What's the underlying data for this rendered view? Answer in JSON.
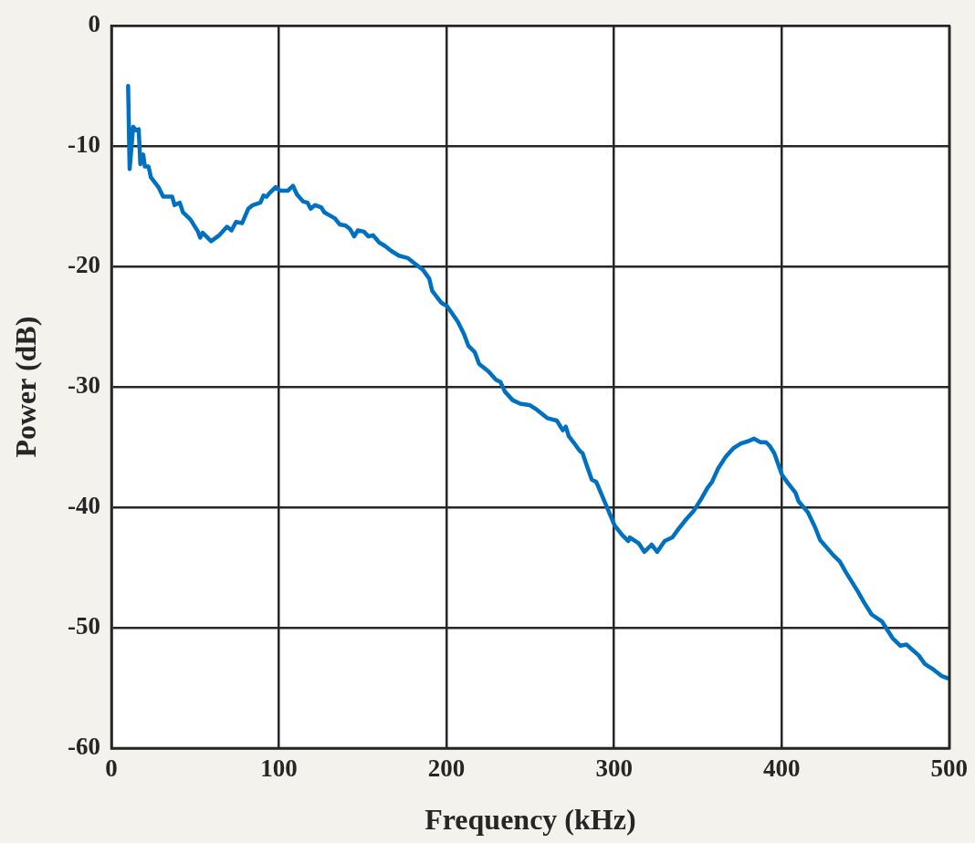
{
  "chart_data": {
    "type": "line",
    "xlabel": "Frequency (kHz)",
    "ylabel": "Power (dB)",
    "xlim": [
      0,
      500
    ],
    "ylim": [
      -60,
      0
    ],
    "xticks": [
      0,
      100,
      200,
      300,
      400,
      500
    ],
    "yticks": [
      -60,
      -50,
      -40,
      -30,
      -20,
      -10,
      0
    ],
    "grid": true,
    "marker": "none",
    "line_style": "solid",
    "series": [
      {
        "color": "#0070c0",
        "x": [
          10,
          10.9,
          13,
          14.9,
          16.3,
          17.3,
          19,
          20,
          22.2,
          23.6,
          28.1,
          30.9,
          36.3,
          37.7,
          40.8,
          42.7,
          47.2,
          51.7,
          53,
          54.5,
          59.5,
          64.4,
          69,
          71.7,
          74.4,
          78,
          81.7,
          84.4,
          88.9,
          90.8,
          92.6,
          94.4,
          98,
          100.8,
          105.3,
          108.4,
          110.7,
          114.4,
          117.1,
          118.9,
          121.6,
          125.3,
          127.1,
          133.4,
          136.2,
          139.8,
          142.5,
          144.9,
          147.1,
          150.7,
          153.4,
          156.2,
          159.8,
          163.4,
          167,
          171.6,
          177,
          181.5,
          186.1,
          189.7,
          191.4,
          196.8,
          200.4,
          206.8,
          210.4,
          213.1,
          216.8,
          219.5,
          225,
          229.5,
          232.2,
          234.9,
          239.5,
          244,
          249.5,
          254,
          260.3,
          265.8,
          269.4,
          271.2,
          273,
          275.8,
          279.4,
          281.2,
          283.9,
          286.7,
          289.4,
          292.1,
          295.8,
          300.3,
          304.8,
          308.5,
          309.4,
          314.8,
          318.1,
          322.4,
          325.7,
          330.2,
          334.8,
          338.4,
          343,
          347.5,
          352,
          355.7,
          358.4,
          362,
          366.6,
          371.1,
          375.7,
          380.2,
          383.4,
          387.4,
          390.7,
          392.9,
          395.6,
          400.2,
          403.8,
          408.3,
          410.1,
          415.6,
          420.1,
          422.9,
          431,
          434.7,
          438.4,
          445.5,
          449.2,
          453.7,
          460,
          463.6,
          466.4,
          470.9,
          474.5,
          481.8,
          485.4,
          490.8,
          495.4,
          499
        ],
        "values": [
          -5,
          -11.9,
          -8.4,
          -8.7,
          -8.6,
          -11.5,
          -10.7,
          -11.7,
          -11.7,
          -12.6,
          -13.4,
          -14.2,
          -14.2,
          -14.9,
          -14.7,
          -15.5,
          -16.1,
          -17.1,
          -17.6,
          -17.2,
          -17.9,
          -17.4,
          -16.7,
          -17,
          -16.3,
          -16.4,
          -15.2,
          -14.9,
          -14.7,
          -14.1,
          -14.2,
          -13.9,
          -13.4,
          -13.7,
          -13.7,
          -13.3,
          -14,
          -14.6,
          -14.7,
          -15.2,
          -14.9,
          -15.1,
          -15.5,
          -16,
          -16.5,
          -16.6,
          -16.9,
          -17.5,
          -17,
          -17.1,
          -17.5,
          -17.4,
          -18,
          -18.3,
          -18.7,
          -19.1,
          -19.3,
          -19.8,
          -20.3,
          -21,
          -22,
          -23,
          -23.3,
          -24.6,
          -25.6,
          -26.6,
          -27.1,
          -28.1,
          -28.7,
          -29.4,
          -29.6,
          -30.4,
          -31.1,
          -31.4,
          -31.5,
          -31.9,
          -32.6,
          -32.8,
          -33.6,
          -33.3,
          -34.1,
          -34.6,
          -35.3,
          -35.5,
          -36.6,
          -37.7,
          -37.9,
          -38.8,
          -40,
          -41.5,
          -42.3,
          -42.8,
          -42.5,
          -43,
          -43.7,
          -43.1,
          -43.7,
          -42.8,
          -42.5,
          -41.8,
          -41,
          -40.3,
          -39.3,
          -38.4,
          -37.9,
          -36.8,
          -35.8,
          -35.1,
          -34.7,
          -34.5,
          -34.3,
          -34.6,
          -34.6,
          -34.9,
          -35.5,
          -37.3,
          -38,
          -38.8,
          -39.5,
          -40.4,
          -41.7,
          -42.7,
          -44,
          -44.5,
          -45.4,
          -47,
          -47.9,
          -48.9,
          -49.5,
          -50.3,
          -50.9,
          -51.5,
          -51.4,
          -52.3,
          -53,
          -53.5,
          -54,
          -54.2
        ]
      }
    ]
  }
}
